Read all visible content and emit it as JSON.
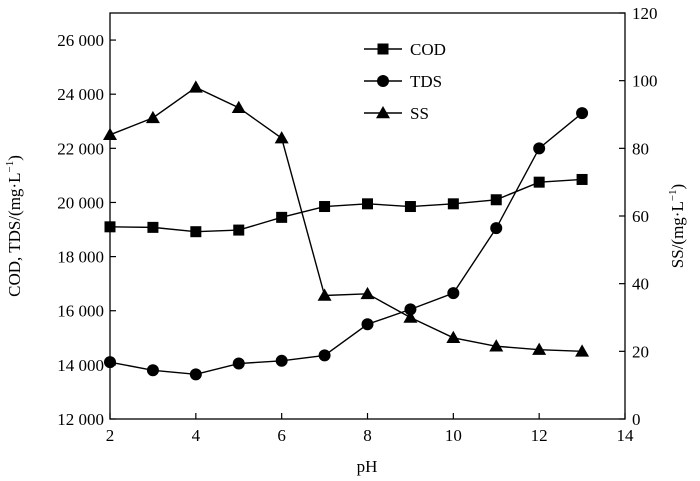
{
  "chart_data": {
    "type": "line",
    "xlabel": "pH",
    "ylabel_left": "COD, TDS/(mg·L",
    "ylabel_left_sup": "−1",
    "ylabel_left_close": ")",
    "ylabel_right": "SS/(mg·L",
    "ylabel_right_sup": "−1",
    "ylabel_right_close": ")",
    "xlim": [
      2,
      14
    ],
    "ylim_left": [
      12000,
      27000
    ],
    "ylim_right": [
      0,
      120
    ],
    "x_ticks": [
      2,
      4,
      6,
      8,
      10,
      12,
      14
    ],
    "x_tick_labels": [
      "2",
      "4",
      "6",
      "8",
      "10",
      "12",
      "14"
    ],
    "y_left_ticks": [
      12000,
      14000,
      16000,
      18000,
      20000,
      22000,
      24000,
      26000
    ],
    "y_left_tick_labels": [
      "12 000",
      "14 000",
      "16 000",
      "18 000",
      "20 000",
      "22 000",
      "24 000",
      "26 000"
    ],
    "y_right_ticks": [
      0,
      20,
      40,
      60,
      80,
      100,
      120
    ],
    "y_right_tick_labels": [
      "0",
      "20",
      "40",
      "60",
      "80",
      "100",
      "120"
    ],
    "legend_position": "top-center",
    "series": [
      {
        "name": "COD",
        "axis": "left",
        "marker": "square",
        "x": [
          2,
          3,
          4,
          5,
          6,
          7,
          8,
          9,
          10,
          11,
          12,
          13
        ],
        "values": [
          19100,
          19080,
          18920,
          18980,
          19450,
          19850,
          19950,
          19850,
          19950,
          20100,
          20750,
          20850
        ]
      },
      {
        "name": "TDS",
        "axis": "left",
        "marker": "circle",
        "x": [
          2,
          3,
          4,
          5,
          6,
          7,
          8,
          9,
          10,
          11,
          12,
          13
        ],
        "values": [
          14100,
          13800,
          13650,
          14050,
          14150,
          14350,
          15500,
          16050,
          16650,
          19050,
          22000,
          23300
        ]
      },
      {
        "name": "SS",
        "axis": "right",
        "marker": "triangle",
        "x": [
          2,
          3,
          4,
          5,
          6,
          7,
          8,
          9,
          10,
          11,
          12,
          13
        ],
        "values": [
          84,
          89,
          98,
          92,
          83,
          36.5,
          37,
          30,
          24,
          21.5,
          20.5,
          20
        ]
      }
    ]
  }
}
